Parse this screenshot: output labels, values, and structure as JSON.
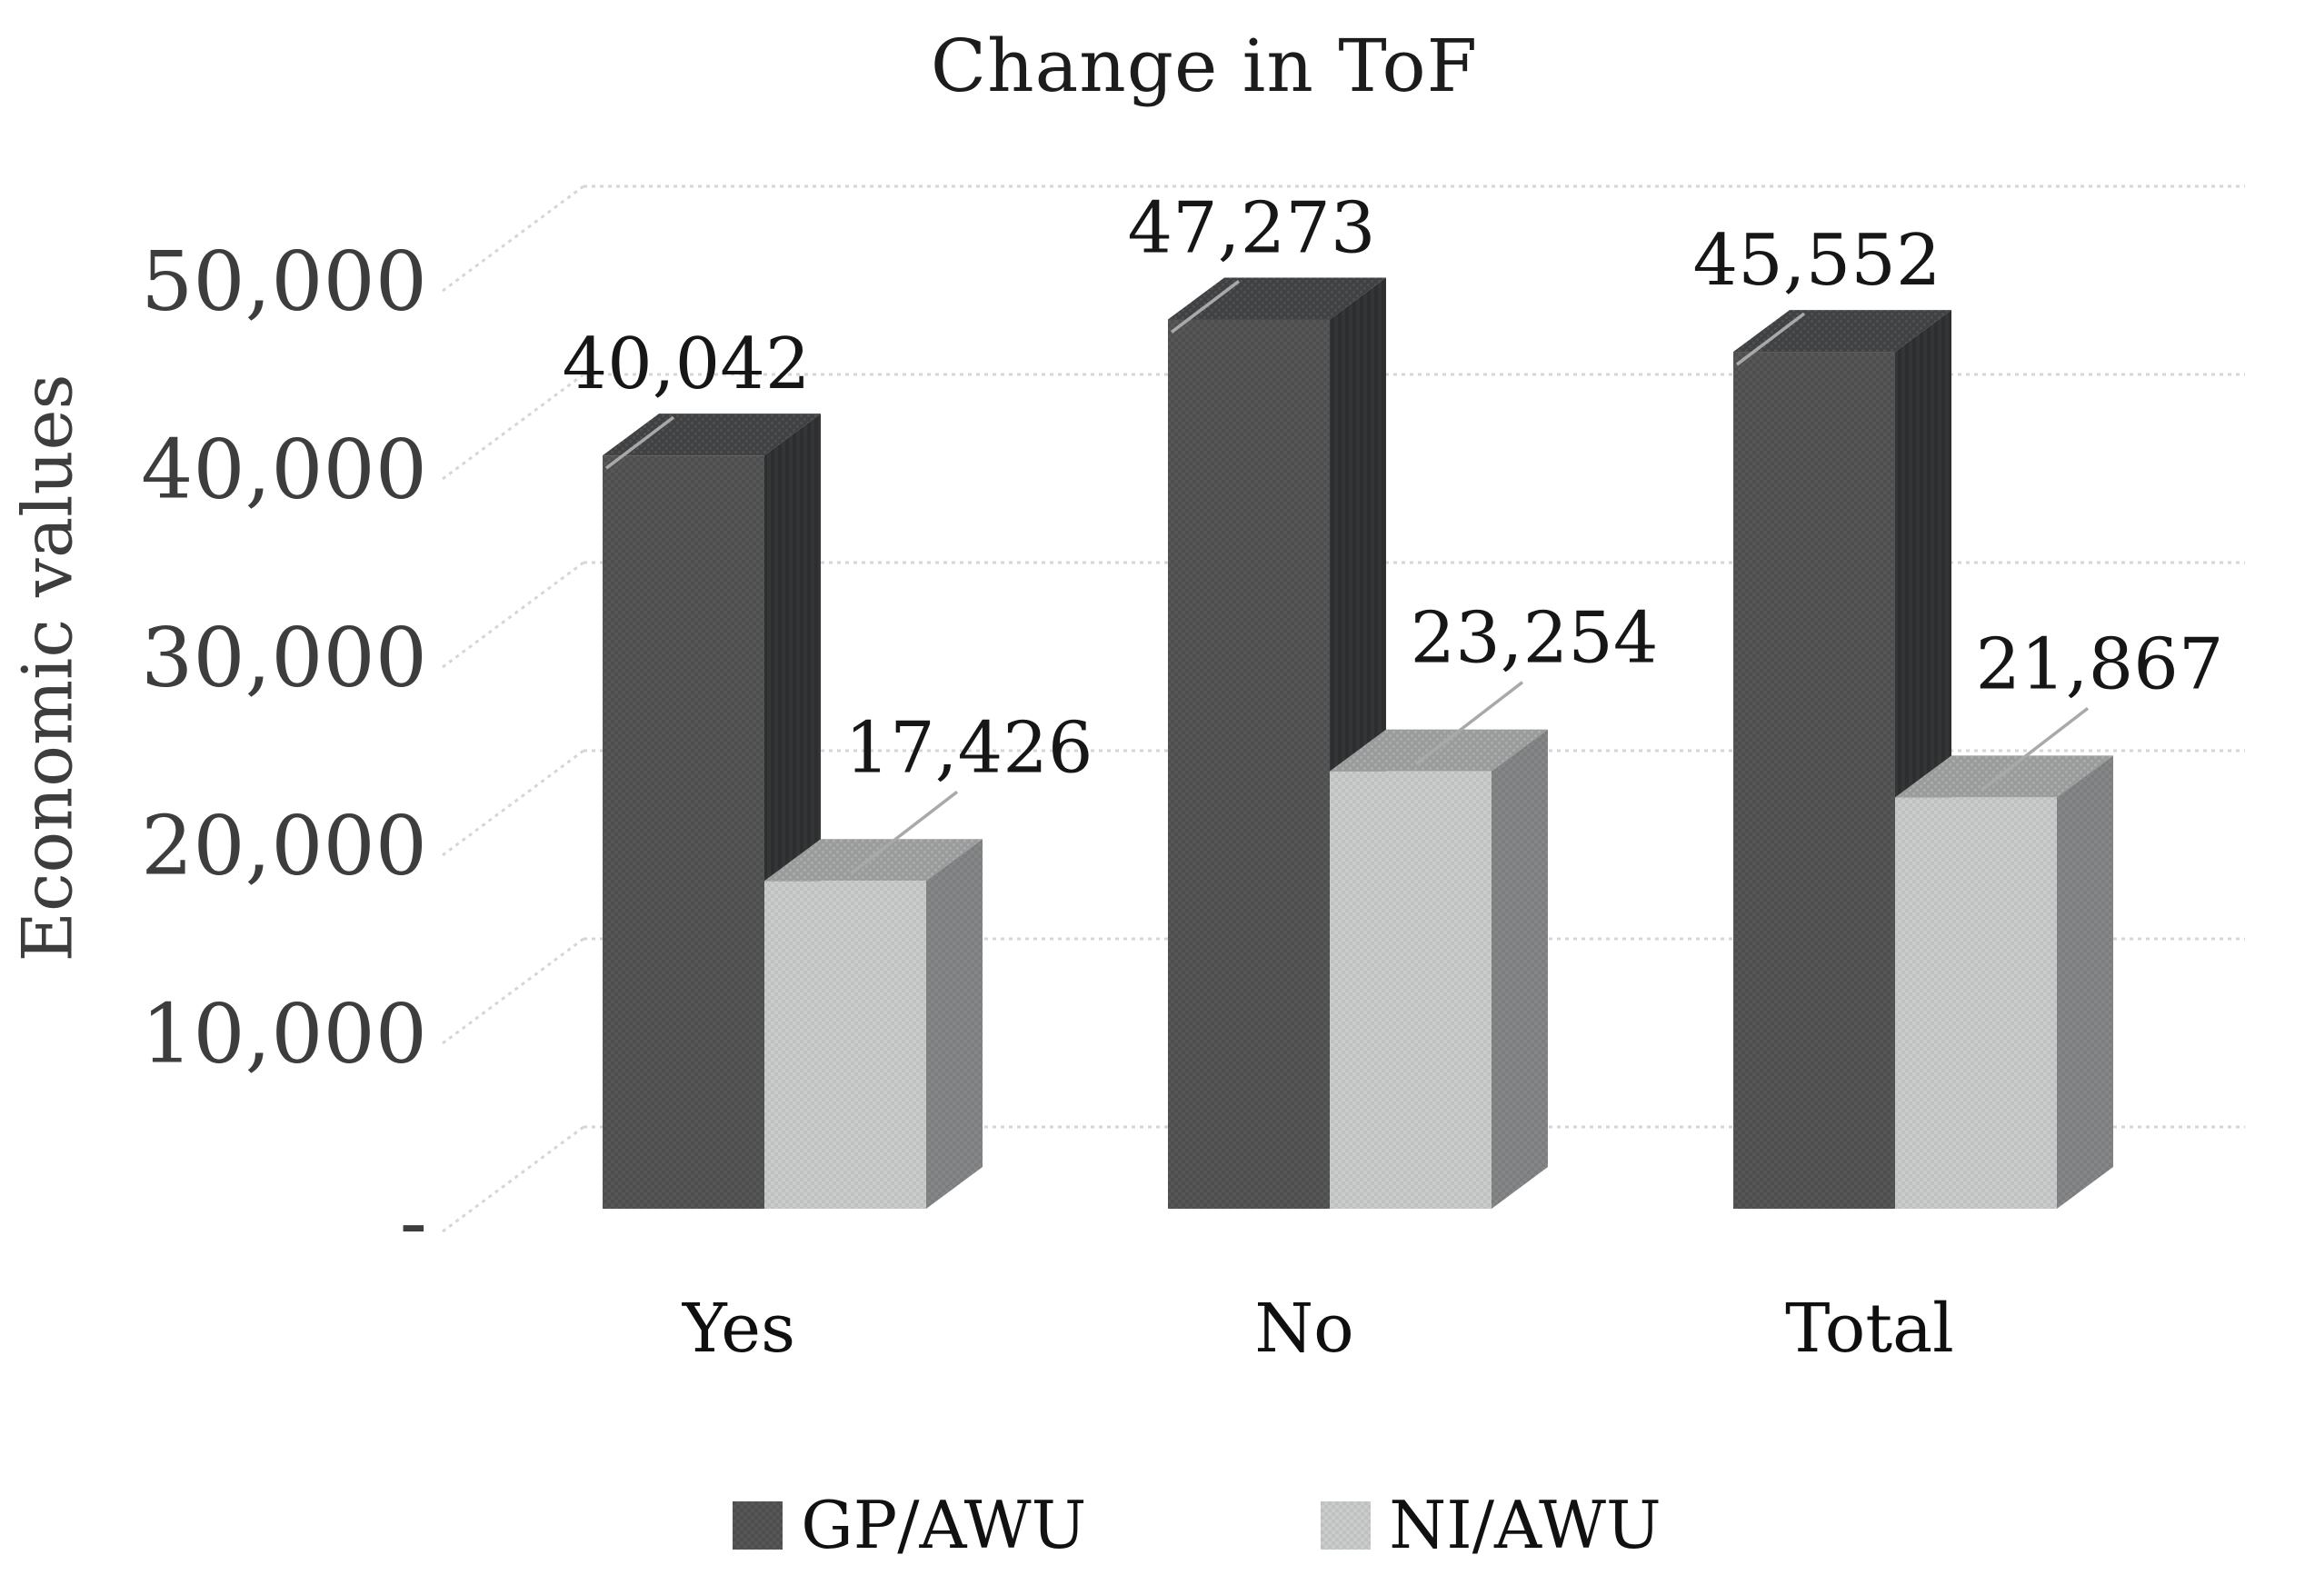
{
  "title": "Change in ToF",
  "y_axis_title": "Economic values",
  "legend": {
    "items": [
      {
        "label": "GP/AWU",
        "color": "#575757"
      },
      {
        "label": "NI/AWU",
        "color": "#cacccc"
      }
    ]
  },
  "chart_data": {
    "type": "bar",
    "projection": "3d",
    "title": "Change in ToF",
    "xlabel": "",
    "ylabel": "Economic values",
    "categories": [
      "Yes",
      "No",
      "Total"
    ],
    "series": [
      {
        "name": "GP/AWU",
        "values": [
          40042,
          47273,
          45552
        ],
        "labels": [
          "40,042",
          "47,273",
          "45,552"
        ],
        "color": "#575757"
      },
      {
        "name": "NI/AWU",
        "values": [
          17426,
          23254,
          21867
        ],
        "labels": [
          "17,426",
          "23,254",
          "21,867"
        ],
        "color": "#cacccc"
      }
    ],
    "ylim": [
      0,
      50000
    ],
    "yticks": [
      {
        "value": 0,
        "label": "-"
      },
      {
        "value": 10000,
        "label": "10,000"
      },
      {
        "value": 20000,
        "label": "20,000"
      },
      {
        "value": 30000,
        "label": "30,000"
      },
      {
        "value": 40000,
        "label": "40,000"
      },
      {
        "value": 50000,
        "label": "50,000"
      }
    ],
    "gridlines": true,
    "legend_position": "bottom",
    "colors": {
      "gridline": "#d6d6d6",
      "leader_line": "#a9a9a9",
      "tick_text": "#3d3d3d",
      "data_label_text": "#161616",
      "category_text": "#0f0f0f"
    }
  }
}
